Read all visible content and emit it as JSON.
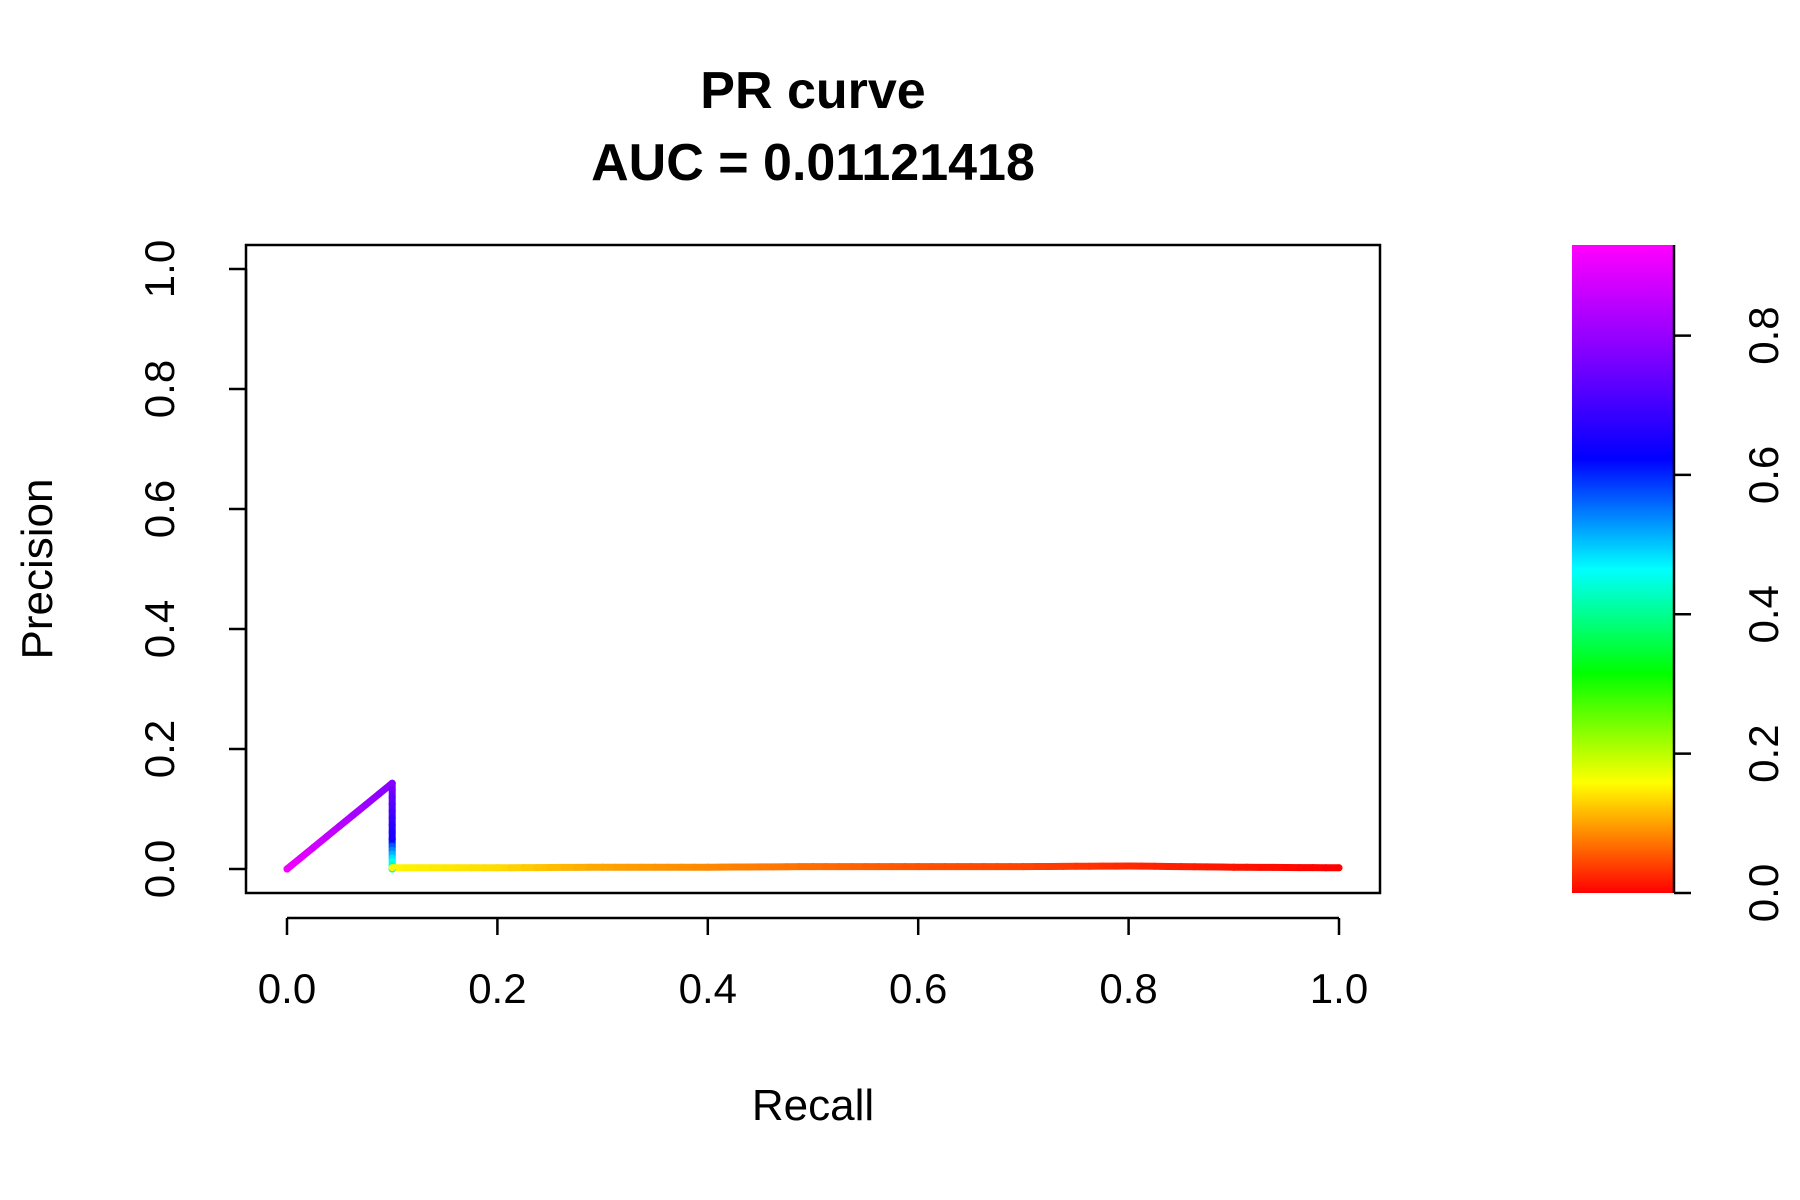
{
  "chart_data": {
    "type": "line",
    "title": "PR curve",
    "subtitle": "AUC = 0.01121418",
    "xlabel": "Recall",
    "ylabel": "Precision",
    "xlim": [
      0,
      1
    ],
    "ylim": [
      0,
      1
    ],
    "x_ticks": [
      "0.0",
      "0.2",
      "0.4",
      "0.6",
      "0.8",
      "1.0"
    ],
    "y_ticks": [
      "0.0",
      "0.2",
      "0.4",
      "0.6",
      "0.8",
      "1.0"
    ],
    "grid": false,
    "colorbar": {
      "range": [
        0,
        0.93
      ],
      "ticks": [
        "0.0",
        "0.2",
        "0.4",
        "0.6",
        "0.8"
      ],
      "colormap": "rainbow red-to-magenta"
    },
    "series": [
      {
        "points": [
          {
            "x": 0.0,
            "y": 0.0,
            "c": 0.92
          },
          {
            "x": 0.1,
            "y": 0.143,
            "c": 0.84
          },
          {
            "x": 0.1,
            "y": 0.05,
            "c": 0.76
          },
          {
            "x": 0.1,
            "y": 0.0,
            "c": 0.5
          },
          {
            "x": 0.1,
            "y": 0.002,
            "c": 0.18
          },
          {
            "x": 0.2,
            "y": 0.002,
            "c": 0.16
          },
          {
            "x": 0.3,
            "y": 0.003,
            "c": 0.12
          },
          {
            "x": 0.4,
            "y": 0.003,
            "c": 0.1
          },
          {
            "x": 0.5,
            "y": 0.004,
            "c": 0.08
          },
          {
            "x": 0.6,
            "y": 0.004,
            "c": 0.06
          },
          {
            "x": 0.7,
            "y": 0.004,
            "c": 0.05
          },
          {
            "x": 0.8,
            "y": 0.005,
            "c": 0.03
          },
          {
            "x": 0.9,
            "y": 0.003,
            "c": 0.015
          },
          {
            "x": 1.0,
            "y": 0.002,
            "c": 0.0
          }
        ]
      }
    ]
  }
}
